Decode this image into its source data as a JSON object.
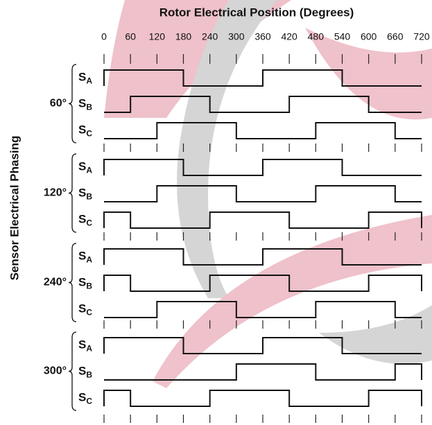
{
  "title": "Rotor Electrical Position (Degrees)",
  "y_axis_label": "Sensor Electrical Phasing",
  "x_ticks": [
    0,
    60,
    120,
    180,
    240,
    300,
    360,
    420,
    480,
    540,
    600,
    660,
    720
  ],
  "groups": [
    {
      "label": "60°",
      "signals": [
        {
          "name": "S",
          "sub": "A",
          "levels": [
            1,
            1,
            1,
            0,
            0,
            0,
            1,
            1,
            1,
            0,
            0,
            0
          ]
        },
        {
          "name": "S",
          "sub": "B",
          "levels": [
            0,
            1,
            1,
            1,
            0,
            0,
            0,
            1,
            1,
            1,
            0,
            0
          ]
        },
        {
          "name": "S",
          "sub": "C",
          "levels": [
            0,
            0,
            1,
            1,
            1,
            0,
            0,
            0,
            1,
            1,
            1,
            0
          ]
        }
      ]
    },
    {
      "label": "120°",
      "signals": [
        {
          "name": "S",
          "sub": "A",
          "levels": [
            1,
            1,
            1,
            0,
            0,
            0,
            1,
            1,
            1,
            0,
            0,
            0
          ]
        },
        {
          "name": "S",
          "sub": "B",
          "levels": [
            0,
            0,
            1,
            1,
            1,
            0,
            0,
            0,
            1,
            1,
            1,
            0
          ]
        },
        {
          "name": "S",
          "sub": "C",
          "levels": [
            1,
            0,
            0,
            0,
            1,
            1,
            1,
            0,
            0,
            0,
            1,
            1
          ]
        }
      ]
    },
    {
      "label": "240°",
      "signals": [
        {
          "name": "S",
          "sub": "A",
          "levels": [
            1,
            1,
            1,
            0,
            0,
            0,
            1,
            1,
            1,
            0,
            0,
            0
          ]
        },
        {
          "name": "S",
          "sub": "B",
          "levels": [
            1,
            0,
            0,
            0,
            1,
            1,
            1,
            0,
            0,
            0,
            1,
            1
          ]
        },
        {
          "name": "S",
          "sub": "C",
          "levels": [
            0,
            0,
            1,
            1,
            1,
            0,
            0,
            0,
            1,
            1,
            1,
            0
          ]
        }
      ]
    },
    {
      "label": "300°",
      "signals": [
        {
          "name": "S",
          "sub": "A",
          "levels": [
            1,
            1,
            1,
            0,
            0,
            0,
            1,
            1,
            1,
            0,
            0,
            0
          ]
        },
        {
          "name": "S",
          "sub": "B",
          "levels": [
            0,
            0,
            0,
            0,
            0,
            1,
            1,
            1,
            0,
            0,
            0,
            1
          ]
        },
        {
          "name": "S",
          "sub": "C",
          "levels": [
            1,
            0,
            0,
            0,
            1,
            1,
            1,
            0,
            0,
            0,
            1,
            1
          ]
        }
      ]
    }
  ]
}
